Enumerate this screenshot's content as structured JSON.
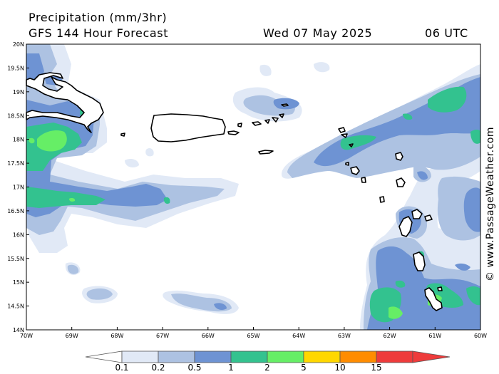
{
  "header": {
    "title": "Precipitation (mm/3hr)",
    "subtitle": "GFS 144 Hour Forecast",
    "valid_date": "Wed 07 May 2025",
    "valid_time": "06 UTC"
  },
  "credit": "© www.PassageWeather.com",
  "map": {
    "lat_labels": [
      "20N",
      "19.5N",
      "19N",
      "18.5N",
      "18N",
      "17.5N",
      "17N",
      "16.5N",
      "16N",
      "15.5N",
      "15N",
      "14.5N",
      "14N"
    ],
    "lon_labels": [
      "70W",
      "69W",
      "68W",
      "67W",
      "66W",
      "65W",
      "64W",
      "63W",
      "62W",
      "61W",
      "60W"
    ],
    "lat_range": [
      14,
      20
    ],
    "lon_range": [
      -70,
      -60
    ]
  },
  "legend": {
    "labels": [
      "0.1",
      "0.2",
      "0.5",
      "1",
      "2",
      "5",
      "10",
      "15"
    ],
    "colors": [
      "#ffffff",
      "#e1e9f6",
      "#adc2e2",
      "#6e93d3",
      "#33c28f",
      "#66ee66",
      "#ffd700",
      "#ff8c00",
      "#ee3b3b"
    ]
  },
  "colors": {
    "lvl1": "#e1e9f6",
    "lvl2": "#adc2e2",
    "lvl3": "#6e93d3",
    "lvl4": "#33c28f",
    "lvl5": "#66ee66"
  }
}
